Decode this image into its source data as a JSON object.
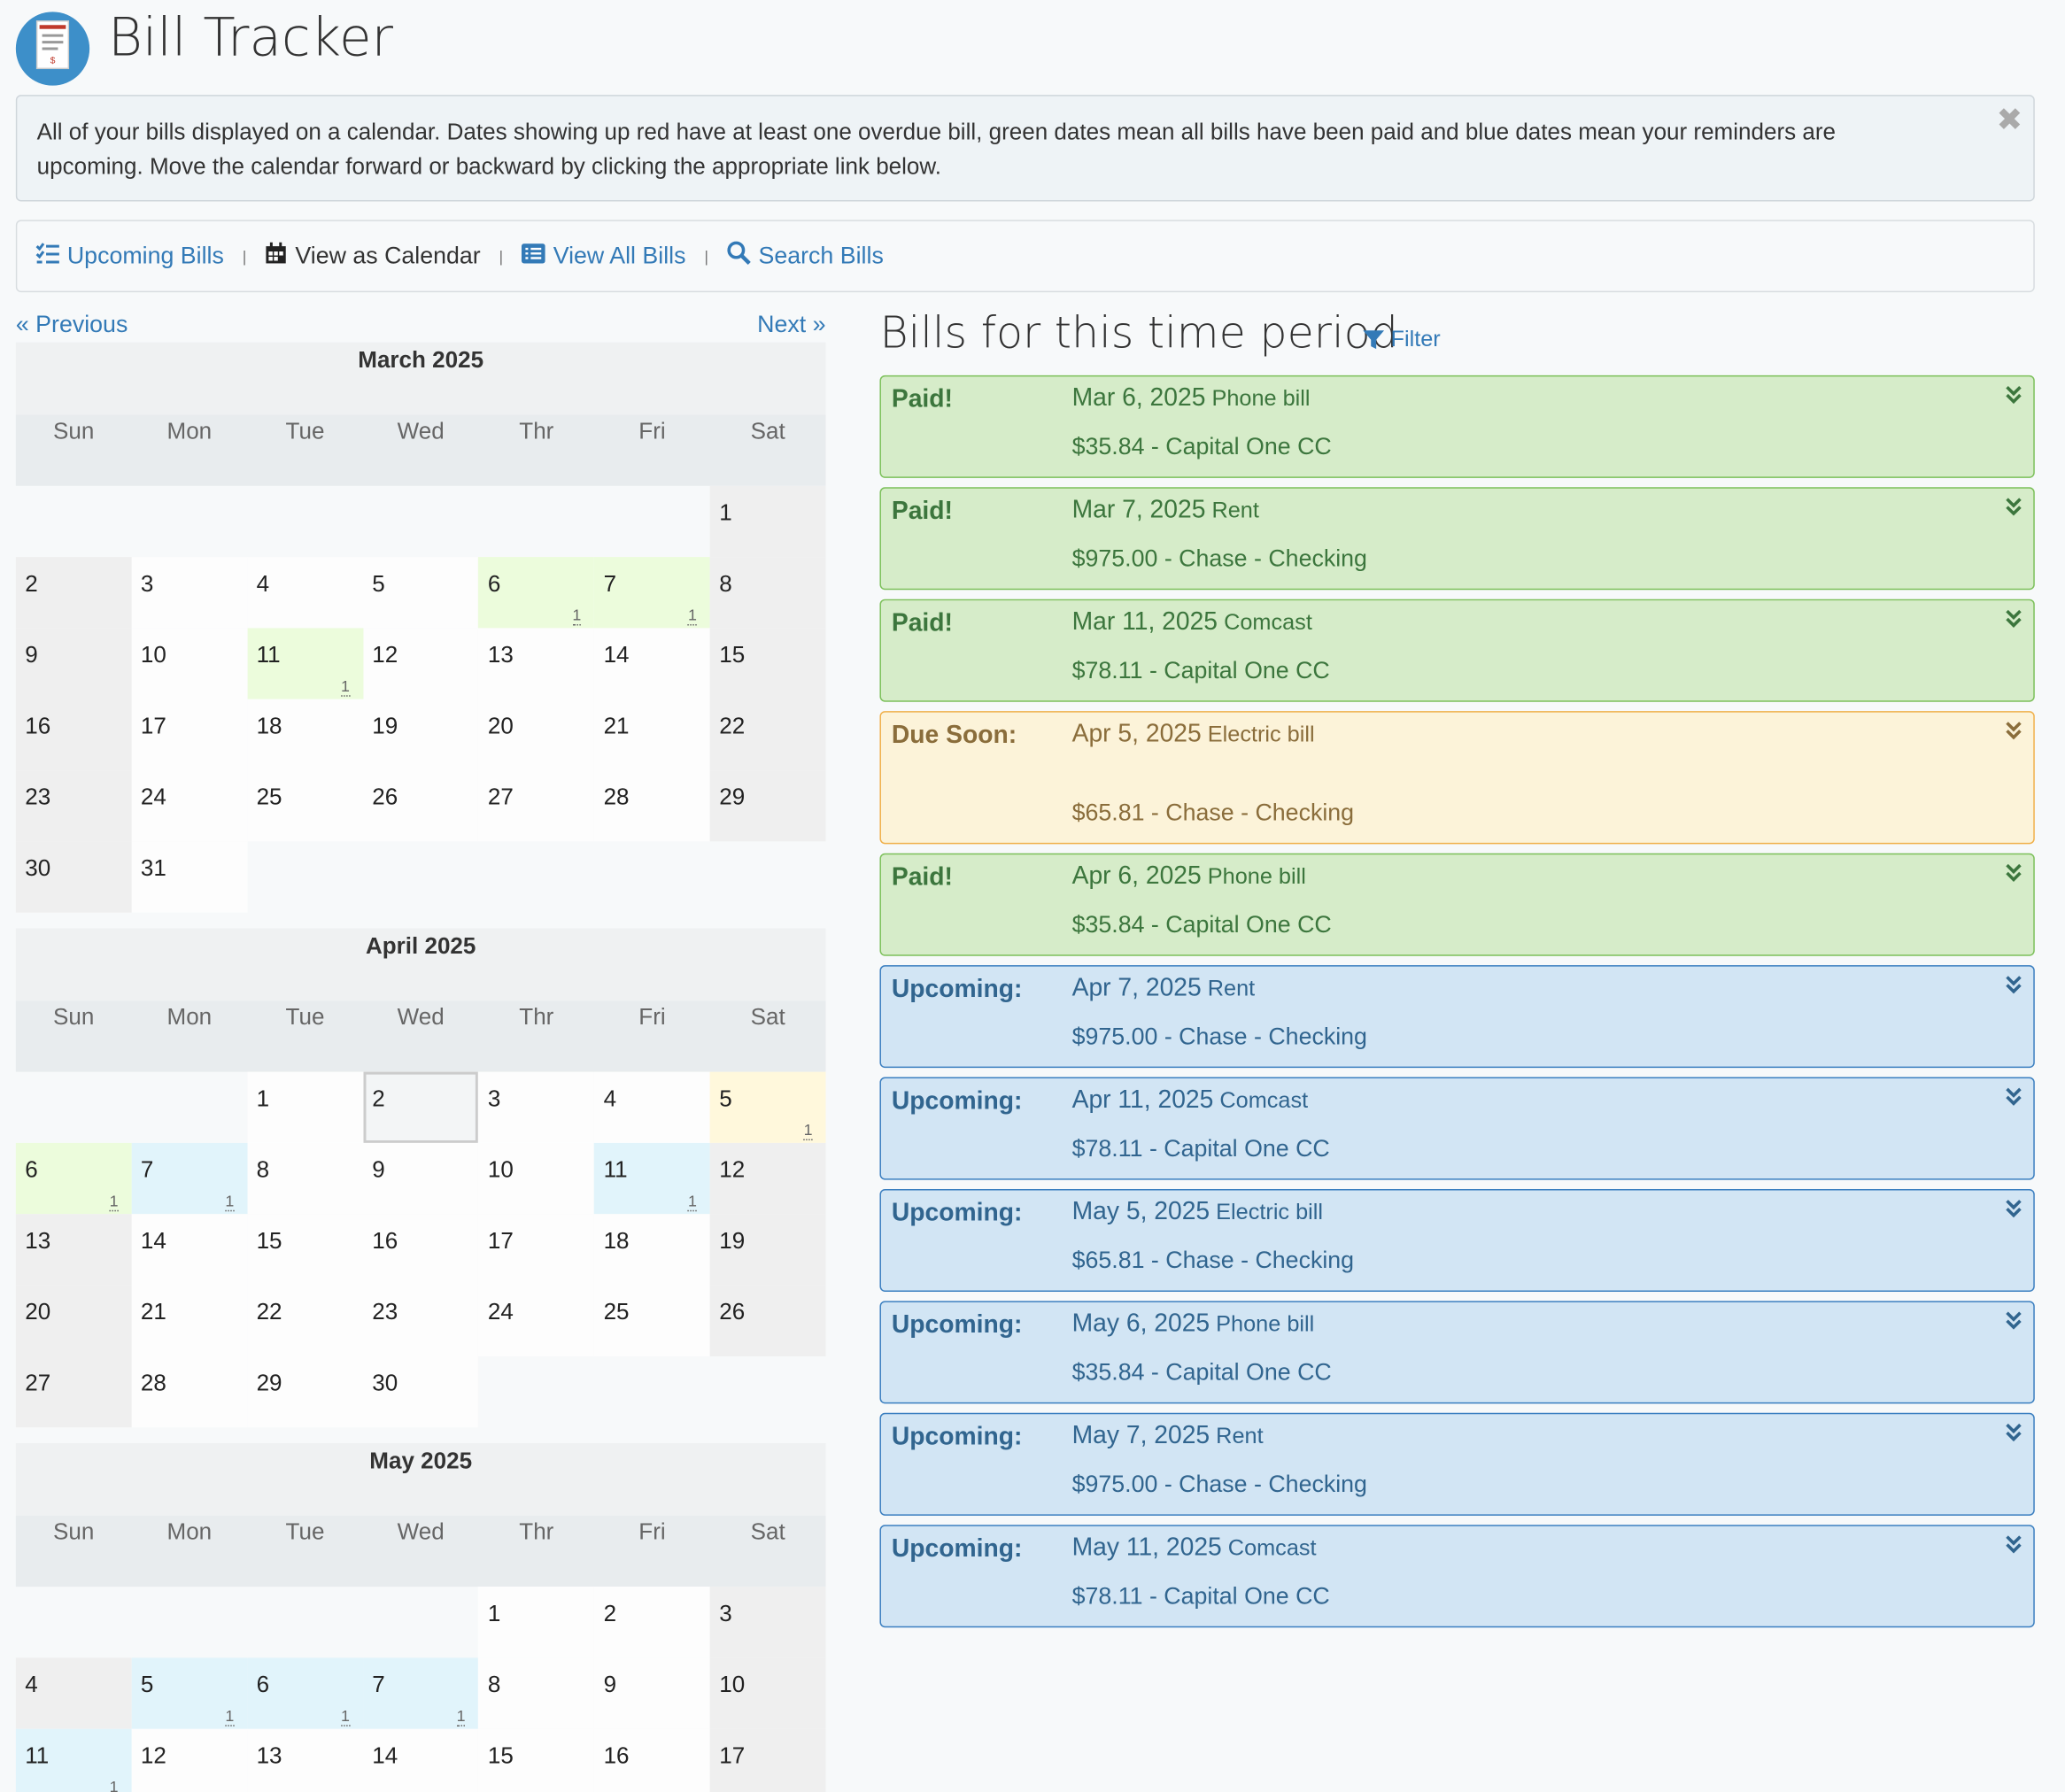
{
  "header": {
    "title": "Bill Tracker"
  },
  "alert": {
    "text": "All of your bills displayed on a calendar. Dates showing up red have at least one overdue bill, green dates mean all bills have been paid and blue dates mean your reminders are upcoming. Move the calendar forward or backward by clicking the appropriate link below."
  },
  "nav": [
    {
      "label": "Upcoming Bills",
      "active": false
    },
    {
      "label": "View as Calendar",
      "active": true
    },
    {
      "label": "View All Bills",
      "active": false
    },
    {
      "label": "Search Bills",
      "active": false
    }
  ],
  "pager": {
    "previous": "« Previous",
    "next": "Next »"
  },
  "calendar": {
    "weekdays": [
      "Sun",
      "Mon",
      "Tue",
      "Wed",
      "Thr",
      "Fri",
      "Sat"
    ],
    "today": {
      "month": 1,
      "day": 2
    },
    "months": [
      {
        "title": "March 2025",
        "weeks": [
          [
            null,
            null,
            null,
            null,
            null,
            null,
            1
          ],
          [
            2,
            3,
            4,
            5,
            6,
            7,
            8
          ],
          [
            9,
            10,
            11,
            12,
            13,
            14,
            15
          ],
          [
            16,
            17,
            18,
            19,
            20,
            21,
            22
          ],
          [
            23,
            24,
            25,
            26,
            27,
            28,
            29
          ],
          [
            30,
            31,
            null,
            null,
            null,
            null,
            null
          ]
        ],
        "bills": [
          {
            "day": 6,
            "count": 1,
            "status": "paid"
          },
          {
            "day": 7,
            "count": 1,
            "status": "paid"
          },
          {
            "day": 11,
            "count": 1,
            "status": "paid"
          }
        ]
      },
      {
        "title": "April 2025",
        "weeks": [
          [
            null,
            null,
            1,
            2,
            3,
            4,
            5
          ],
          [
            6,
            7,
            8,
            9,
            10,
            11,
            12
          ],
          [
            13,
            14,
            15,
            16,
            17,
            18,
            19
          ],
          [
            20,
            21,
            22,
            23,
            24,
            25,
            26
          ],
          [
            27,
            28,
            29,
            30,
            null,
            null,
            null
          ]
        ],
        "bills": [
          {
            "day": 5,
            "count": 1,
            "status": "due"
          },
          {
            "day": 6,
            "count": 1,
            "status": "paid"
          },
          {
            "day": 7,
            "count": 1,
            "status": "upcoming"
          },
          {
            "day": 11,
            "count": 1,
            "status": "upcoming"
          }
        ]
      },
      {
        "title": "May 2025",
        "weeks": [
          [
            null,
            null,
            null,
            null,
            1,
            2,
            3
          ],
          [
            4,
            5,
            6,
            7,
            8,
            9,
            10
          ],
          [
            11,
            12,
            13,
            14,
            15,
            16,
            17
          ]
        ],
        "bills": [
          {
            "day": 5,
            "count": 1,
            "status": "upcoming"
          },
          {
            "day": 6,
            "count": 1,
            "status": "upcoming"
          },
          {
            "day": 7,
            "count": 1,
            "status": "upcoming"
          },
          {
            "day": 11,
            "count": 1,
            "status": "upcoming"
          }
        ]
      }
    ]
  },
  "bills_panel": {
    "title": "Bills for this time period",
    "filter": "Filter",
    "bills": [
      {
        "status": "paid",
        "label": "Paid!",
        "date": "Mar 6, 2025",
        "name": "Phone bill",
        "detail": "$35.84 - Capital One CC"
      },
      {
        "status": "paid",
        "label": "Paid!",
        "date": "Mar 7, 2025",
        "name": "Rent",
        "detail": "$975.00 - Chase - Checking"
      },
      {
        "status": "paid",
        "label": "Paid!",
        "date": "Mar 11, 2025",
        "name": "Comcast",
        "detail": "$78.11 - Capital One CC"
      },
      {
        "status": "due",
        "label": "Due Soon:",
        "date": "Apr 5, 2025",
        "name": "Electric bill",
        "detail": "$65.81 - Chase - Checking"
      },
      {
        "status": "paid",
        "label": "Paid!",
        "date": "Apr 6, 2025",
        "name": "Phone bill",
        "detail": "$35.84 - Capital One CC"
      },
      {
        "status": "upcoming",
        "label": "Upcoming:",
        "date": "Apr 7, 2025",
        "name": "Rent",
        "detail": "$975.00 - Chase - Checking"
      },
      {
        "status": "upcoming",
        "label": "Upcoming:",
        "date": "Apr 11, 2025",
        "name": "Comcast",
        "detail": "$78.11 - Capital One CC"
      },
      {
        "status": "upcoming",
        "label": "Upcoming:",
        "date": "May 5, 2025",
        "name": "Electric bill",
        "detail": "$65.81 - Chase - Checking"
      },
      {
        "status": "upcoming",
        "label": "Upcoming:",
        "date": "May 6, 2025",
        "name": "Phone bill",
        "detail": "$35.84 - Capital One CC"
      },
      {
        "status": "upcoming",
        "label": "Upcoming:",
        "date": "May 7, 2025",
        "name": "Rent",
        "detail": "$975.00 - Chase - Checking"
      },
      {
        "status": "upcoming",
        "label": "Upcoming:",
        "date": "May 11, 2025",
        "name": "Comcast",
        "detail": "$78.11 - Capital One CC"
      }
    ]
  }
}
